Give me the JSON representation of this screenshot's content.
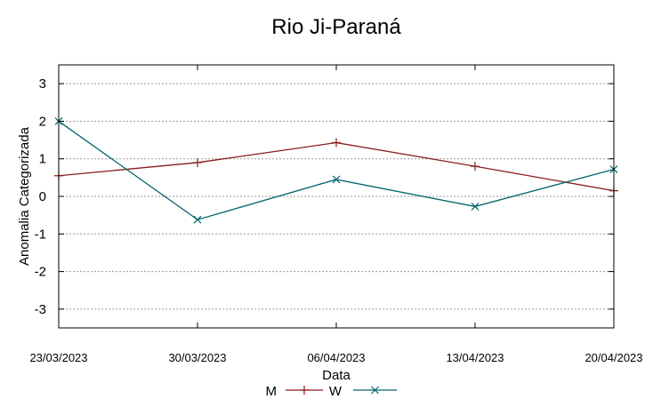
{
  "chart_data": {
    "type": "line",
    "title": "Rio Ji-Paraná",
    "xlabel": "Data",
    "ylabel": "Anomalia Categorizada",
    "categories": [
      "23/03/2023",
      "30/03/2023",
      "06/04/2023",
      "13/04/2023",
      "20/04/2023"
    ],
    "ylim": [
      -3.5,
      3.5
    ],
    "yticks": [
      "-3",
      "-2",
      "-1",
      "0",
      "1",
      "2",
      "3"
    ],
    "grid": true,
    "legend_position": "bottom-center",
    "series": [
      {
        "name": "M",
        "values": [
          0.55,
          0.9,
          1.43,
          0.8,
          0.15
        ],
        "color": "#8b1a1a",
        "marker": "plus"
      },
      {
        "name": "W",
        "values": [
          2.0,
          -0.62,
          0.45,
          -0.27,
          0.72
        ],
        "color": "#00676b",
        "marker": "cross"
      }
    ]
  }
}
